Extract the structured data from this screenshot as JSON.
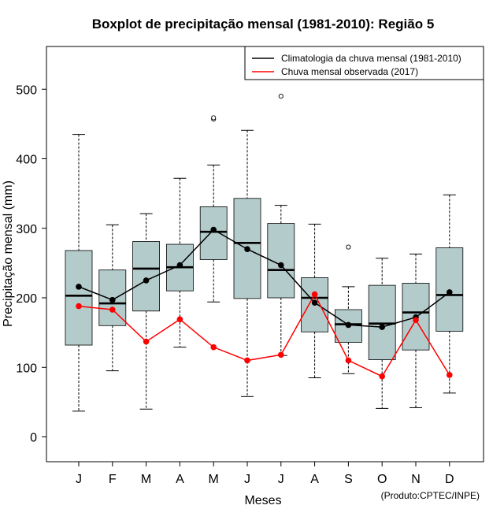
{
  "chart_data": {
    "type": "boxplot",
    "title": "Boxplot de precipitação mensal (1981-2010): Região 5",
    "xlabel": "Meses",
    "ylabel": "Precipitação mensal (mm)",
    "ylim": [
      -35,
      560
    ],
    "yticks": [
      0,
      100,
      200,
      300,
      400,
      500
    ],
    "categories": [
      "J",
      "F",
      "M",
      "A",
      "M",
      "J",
      "J",
      "A",
      "S",
      "O",
      "N",
      "D"
    ],
    "boxes": [
      {
        "min": 37,
        "q1": 132,
        "median": 203,
        "q3": 268,
        "max": 435,
        "outliers": []
      },
      {
        "min": 95,
        "q1": 160,
        "median": 192,
        "q3": 240,
        "max": 305,
        "outliers": []
      },
      {
        "min": 40,
        "q1": 181,
        "median": 242,
        "q3": 281,
        "max": 321,
        "outliers": []
      },
      {
        "min": 129,
        "q1": 210,
        "median": 244,
        "q3": 277,
        "max": 372,
        "outliers": []
      },
      {
        "min": 194,
        "q1": 255,
        "median": 295,
        "q3": 331,
        "max": 391,
        "outliers": [
          457,
          459
        ]
      },
      {
        "min": 58,
        "q1": 199,
        "median": 279,
        "q3": 343,
        "max": 441,
        "outliers": []
      },
      {
        "min": 117,
        "q1": 200,
        "median": 240,
        "q3": 307,
        "max": 333,
        "outliers": [
          490
        ]
      },
      {
        "min": 85,
        "q1": 151,
        "median": 200,
        "q3": 229,
        "max": 306,
        "outliers": []
      },
      {
        "min": 91,
        "q1": 136,
        "median": 162,
        "q3": 183,
        "max": 216,
        "outliers": [
          273
        ]
      },
      {
        "min": 41,
        "q1": 111,
        "median": 163,
        "q3": 218,
        "max": 257,
        "outliers": []
      },
      {
        "min": 42,
        "q1": 125,
        "median": 179,
        "q3": 221,
        "max": 263,
        "outliers": []
      },
      {
        "min": 63,
        "q1": 152,
        "median": 204,
        "q3": 272,
        "max": 348,
        "outliers": []
      }
    ],
    "series": [
      {
        "name": "Climatologia da chuva mensal (1981-2010)",
        "color": "#000000",
        "values": [
          216,
          197,
          225,
          247,
          298,
          270,
          247,
          193,
          161,
          158,
          172,
          208
        ]
      },
      {
        "name": "Chuva mensal observada (2017)",
        "color": "#ff0000",
        "values": [
          188,
          183,
          137,
          169,
          129,
          110,
          118,
          205,
          110,
          87,
          168,
          89
        ]
      }
    ],
    "box_fill": "#b4cbcb",
    "legend_position": "top-right",
    "credit": "(Produto:CPTEC/INPE)"
  }
}
